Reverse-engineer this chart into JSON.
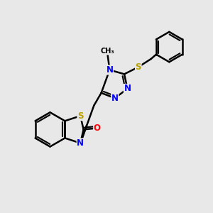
{
  "background_color": "#e8e8e8",
  "atom_colors": {
    "C": "#000000",
    "N": "#0000ff",
    "S": "#b8a000",
    "O": "#ff0000"
  },
  "bond_color": "#000000",
  "bond_width": 1.8,
  "figsize": [
    3.0,
    3.0
  ],
  "dpi": 100,
  "font_size": 8.5
}
